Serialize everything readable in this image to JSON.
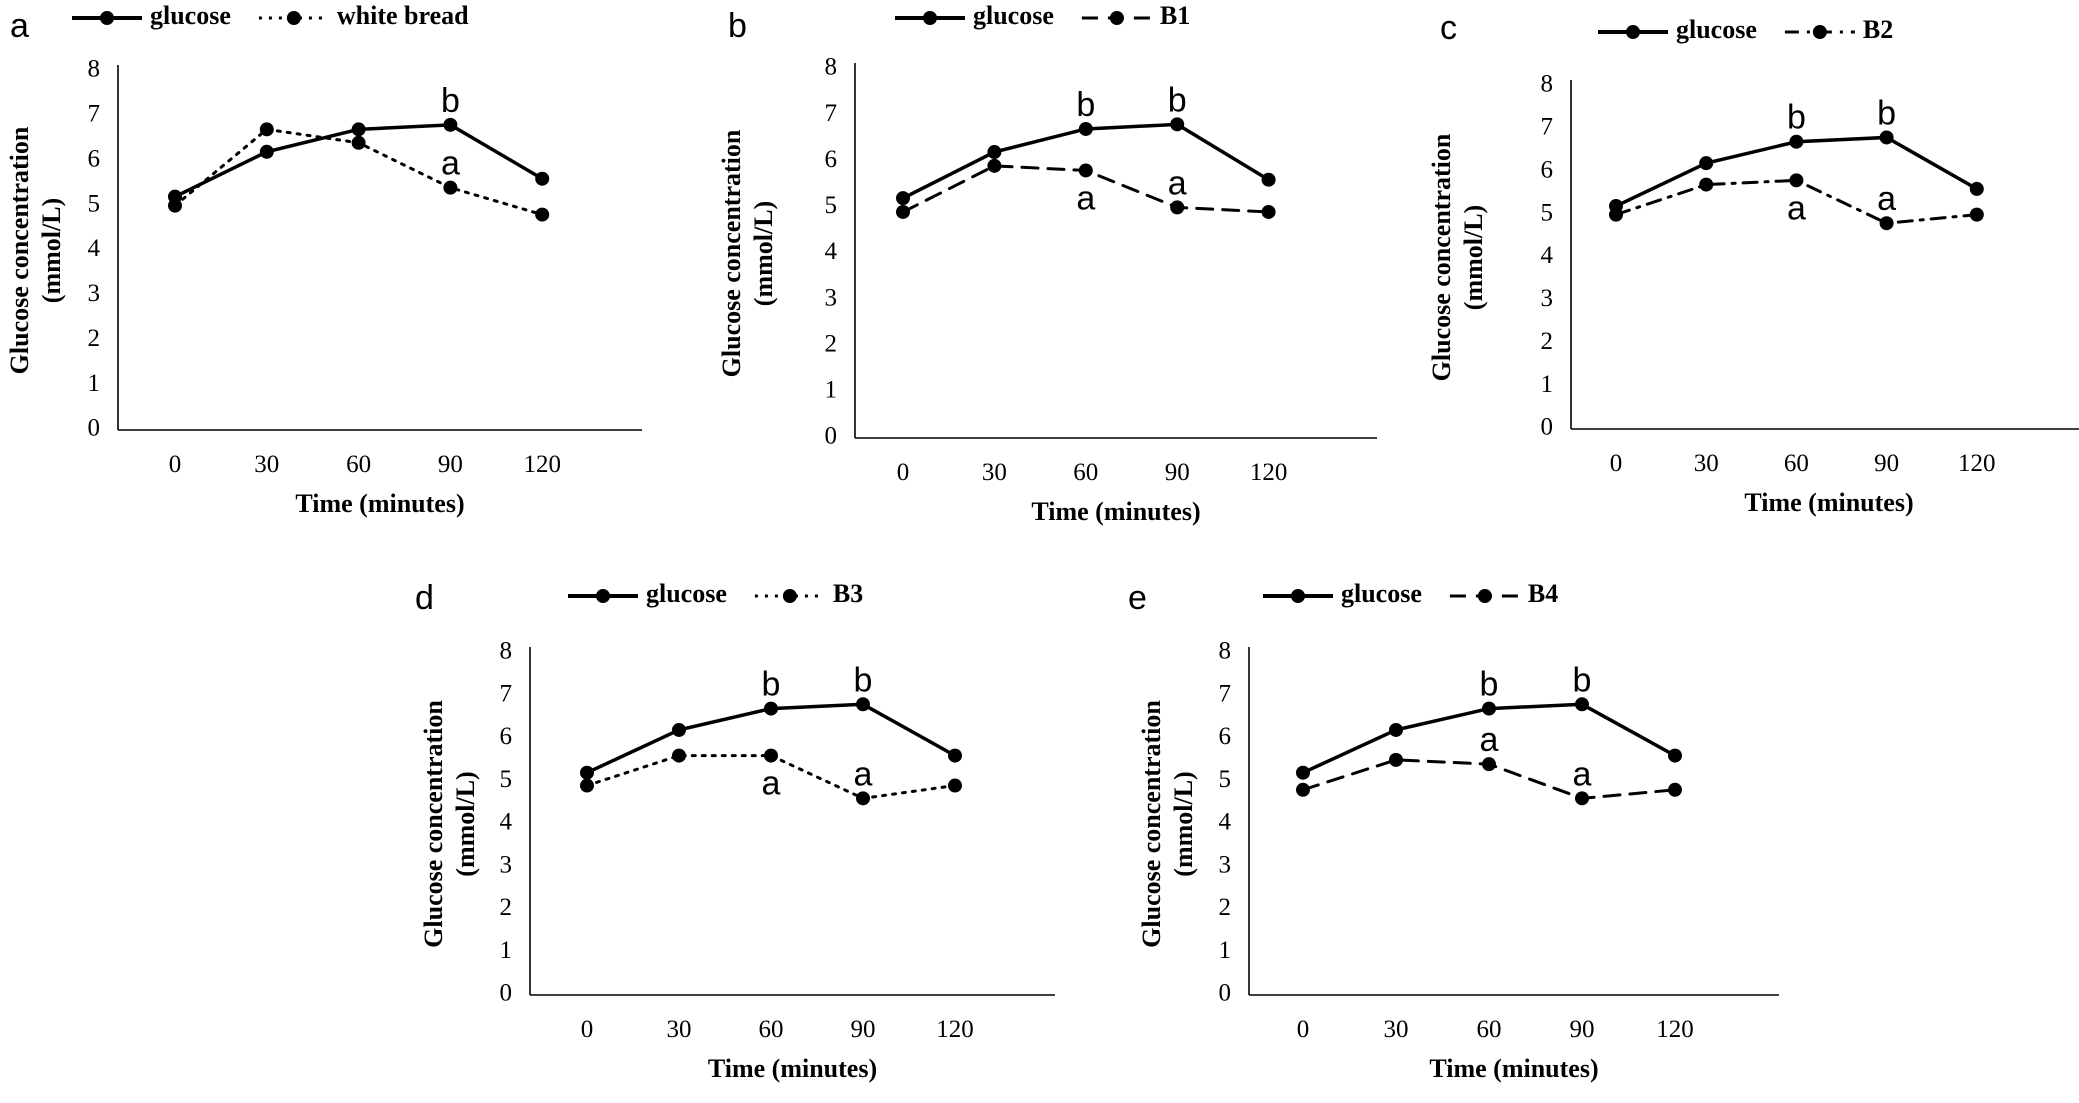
{
  "chart_data": [
    {
      "panel": "a",
      "type": "line",
      "x": [
        0,
        30,
        60,
        90,
        120
      ],
      "xlabel": "Time (minutes)",
      "ylabel": [
        "Glucose concentration",
        "(mmol/L)"
      ],
      "ylim": [
        0,
        8
      ],
      "yticks": [
        0,
        1,
        2,
        3,
        4,
        5,
        6,
        7,
        8
      ],
      "grid": false,
      "legend": "top",
      "series": [
        {
          "name": "glucose",
          "style": "solid",
          "values": [
            5.2,
            6.2,
            6.7,
            6.8,
            5.6
          ]
        },
        {
          "name": "white bread",
          "style": "dotted",
          "values": [
            5.0,
            6.7,
            6.4,
            5.4,
            4.8
          ]
        }
      ],
      "annotations": [
        {
          "text": "b",
          "x": 90,
          "y": 6.8,
          "pos": "above"
        },
        {
          "text": "a",
          "x": 90,
          "y": 5.4,
          "pos": "above"
        }
      ]
    },
    {
      "panel": "b",
      "type": "line",
      "x": [
        0,
        30,
        60,
        90,
        120
      ],
      "xlabel": "Time (minutes)",
      "ylabel": [
        "Glucose concentration",
        "(mmol/L)"
      ],
      "ylim": [
        0,
        8
      ],
      "yticks": [
        0,
        1,
        2,
        3,
        4,
        5,
        6,
        7,
        8
      ],
      "grid": false,
      "legend": "top",
      "series": [
        {
          "name": "glucose",
          "style": "solid",
          "values": [
            5.2,
            6.2,
            6.7,
            6.8,
            5.6
          ]
        },
        {
          "name": "B1",
          "style": "dashed",
          "values": [
            4.9,
            5.9,
            5.8,
            5.0,
            4.9
          ]
        }
      ],
      "annotations": [
        {
          "text": "b",
          "x": 60,
          "y": 6.7,
          "pos": "above"
        },
        {
          "text": "b",
          "x": 90,
          "y": 6.8,
          "pos": "above"
        },
        {
          "text": "a",
          "x": 60,
          "y": 5.8,
          "pos": "below"
        },
        {
          "text": "a",
          "x": 90,
          "y": 5.0,
          "pos": "above"
        }
      ]
    },
    {
      "panel": "c",
      "type": "line",
      "x": [
        0,
        30,
        60,
        90,
        120
      ],
      "xlabel": "Time (minutes)",
      "ylabel": [
        "Glucose concentration",
        "(mmol/L)"
      ],
      "ylim": [
        0,
        8
      ],
      "yticks": [
        0,
        1,
        2,
        3,
        4,
        5,
        6,
        7,
        8
      ],
      "grid": false,
      "legend": "top",
      "series": [
        {
          "name": "glucose",
          "style": "solid",
          "values": [
            5.2,
            6.2,
            6.7,
            6.8,
            5.6
          ]
        },
        {
          "name": "B2",
          "style": "dashdot",
          "values": [
            5.0,
            5.7,
            5.8,
            4.8,
            5.0
          ]
        }
      ],
      "annotations": [
        {
          "text": "b",
          "x": 60,
          "y": 6.7,
          "pos": "above"
        },
        {
          "text": "b",
          "x": 90,
          "y": 6.8,
          "pos": "above"
        },
        {
          "text": "a",
          "x": 60,
          "y": 5.8,
          "pos": "below"
        },
        {
          "text": "a",
          "x": 90,
          "y": 4.8,
          "pos": "above"
        }
      ]
    },
    {
      "panel": "d",
      "type": "line",
      "x": [
        0,
        30,
        60,
        90,
        120
      ],
      "xlabel": "Time (minutes)",
      "ylabel": [
        "Glucose concentration",
        "(mmol/L)"
      ],
      "ylim": [
        0,
        8
      ],
      "yticks": [
        0,
        1,
        2,
        3,
        4,
        5,
        6,
        7,
        8
      ],
      "grid": false,
      "legend": "top",
      "series": [
        {
          "name": "glucose",
          "style": "solid",
          "values": [
            5.2,
            6.2,
            6.7,
            6.8,
            5.6
          ]
        },
        {
          "name": "B3",
          "style": "dotted",
          "values": [
            4.9,
            5.6,
            5.6,
            4.6,
            4.9
          ]
        }
      ],
      "annotations": [
        {
          "text": "b",
          "x": 60,
          "y": 6.7,
          "pos": "above"
        },
        {
          "text": "b",
          "x": 90,
          "y": 6.8,
          "pos": "above"
        },
        {
          "text": "a",
          "x": 60,
          "y": 5.6,
          "pos": "below"
        },
        {
          "text": "a",
          "x": 90,
          "y": 4.6,
          "pos": "above"
        }
      ]
    },
    {
      "panel": "e",
      "type": "line",
      "x": [
        0,
        30,
        60,
        90,
        120
      ],
      "xlabel": "Time (minutes)",
      "ylabel": [
        "Glucose concentration",
        "(mmol/L)"
      ],
      "ylim": [
        0,
        8
      ],
      "yticks": [
        0,
        1,
        2,
        3,
        4,
        5,
        6,
        7,
        8
      ],
      "grid": false,
      "legend": "top",
      "series": [
        {
          "name": "glucose",
          "style": "solid",
          "values": [
            5.2,
            6.2,
            6.7,
            6.8,
            5.6
          ]
        },
        {
          "name": "B4",
          "style": "dashed",
          "values": [
            4.8,
            5.5,
            5.4,
            4.6,
            4.8
          ]
        }
      ],
      "annotations": [
        {
          "text": "b",
          "x": 60,
          "y": 6.7,
          "pos": "above"
        },
        {
          "text": "b",
          "x": 90,
          "y": 6.8,
          "pos": "above"
        },
        {
          "text": "a",
          "x": 60,
          "y": 5.4,
          "pos": "above"
        },
        {
          "text": "a",
          "x": 90,
          "y": 4.6,
          "pos": "above"
        }
      ]
    }
  ]
}
